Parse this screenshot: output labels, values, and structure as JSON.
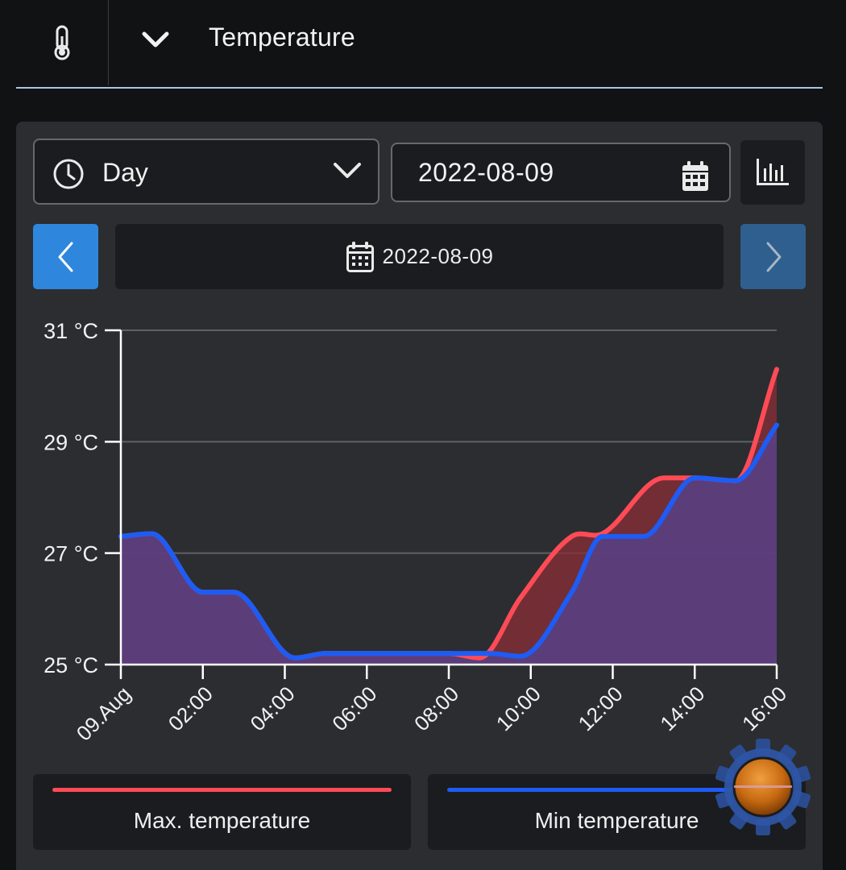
{
  "header": {
    "title": "Temperature",
    "icon": "thermometer-icon",
    "collapse_icon": "chevron-down-icon"
  },
  "controls": {
    "period": {
      "label": "Day",
      "icon": "clock-icon"
    },
    "date_input": {
      "value": "2022-08-09",
      "icon": "calendar-icon"
    },
    "chart_toggle_icon": "bar-chart-icon",
    "current_date": "2022-08-09"
  },
  "legend": [
    {
      "label": "Max. temperature",
      "color": "#ff4b55"
    },
    {
      "label": "Min temperature",
      "color": "#1d5cf5"
    }
  ],
  "chart_data": {
    "type": "area",
    "title": "",
    "xlabel": "",
    "ylabel": "",
    "x_ticks": [
      "09.Aug",
      "02:00",
      "04:00",
      "06:00",
      "08:00",
      "10:00",
      "12:00",
      "14:00",
      "16:00"
    ],
    "y_ticks": [
      "25 °C",
      "27 °C",
      "29 °C",
      "31 °C"
    ],
    "xlim": [
      0,
      16
    ],
    "ylim": [
      25,
      31
    ],
    "grid": true,
    "legend_position": "bottom",
    "series": [
      {
        "name": "Max. temperature",
        "color": "#ff4b55",
        "x": [
          0,
          0.75,
          2.0,
          2.75,
          4.25,
          5.0,
          6.0,
          7.0,
          8.0,
          8.75,
          9.75,
          11.0,
          11.75,
          13.25,
          14.0,
          15.0,
          16.0
        ],
        "y": [
          27.3,
          27.35,
          26.3,
          26.3,
          25.12,
          25.2,
          25.2,
          25.2,
          25.2,
          25.12,
          26.2,
          27.3,
          27.35,
          28.35,
          28.35,
          28.3,
          30.3
        ]
      },
      {
        "name": "Min temperature",
        "color": "#1d5cf5",
        "x": [
          0,
          0.75,
          2.0,
          2.75,
          4.25,
          5.0,
          6.0,
          7.0,
          8.0,
          9.0,
          9.75,
          11.0,
          11.75,
          12.75,
          14.0,
          15.0,
          16.0
        ],
        "y": [
          27.3,
          27.35,
          26.3,
          26.3,
          25.12,
          25.2,
          25.2,
          25.2,
          25.2,
          25.2,
          25.15,
          26.3,
          27.3,
          27.3,
          28.35,
          28.3,
          29.3
        ]
      }
    ]
  }
}
